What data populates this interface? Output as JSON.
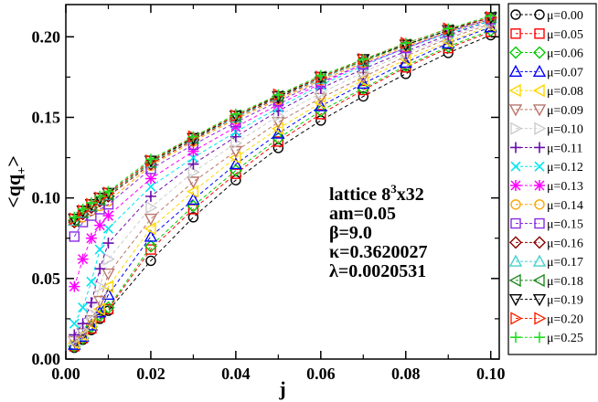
{
  "chart_data": {
    "type": "line",
    "title": "",
    "xlabel": "j",
    "ylabel": "<qq",
    "ylabel_subscript": "+",
    "xlim": [
      0.0,
      0.102
    ],
    "ylim": [
      0.0,
      0.22
    ],
    "xticks": [
      "0.00",
      "0.02",
      "0.04",
      "0.06",
      "0.08",
      "0.10"
    ],
    "yticks": [
      "0.00",
      "0.05",
      "0.10",
      "0.15",
      "0.20"
    ],
    "grid": false,
    "legend_position": "right",
    "x": [
      0.002,
      0.004,
      0.006,
      0.008,
      0.01,
      0.02,
      0.03,
      0.04,
      0.05,
      0.06,
      0.07,
      0.08,
      0.09,
      0.1
    ],
    "annotation_lines": [
      {
        "text": "lattice 8",
        "sup": "3",
        "tail": "x32"
      },
      {
        "text": "am=0.05"
      },
      {
        "text": "β=9.0"
      },
      {
        "text": "κ=0.3620027"
      },
      {
        "text": "λ=0.0020531"
      }
    ],
    "series": [
      {
        "name": "μ=0.00",
        "color": "#000000",
        "marker": "circle",
        "values": [
          0.007,
          0.012,
          0.018,
          0.025,
          0.03,
          0.061,
          0.088,
          0.111,
          0.131,
          0.148,
          0.163,
          0.177,
          0.19,
          0.201
        ]
      },
      {
        "name": "μ=0.05",
        "color": "#ff0000",
        "marker": "square",
        "values": [
          0.008,
          0.013,
          0.019,
          0.026,
          0.031,
          0.068,
          0.093,
          0.115,
          0.135,
          0.152,
          0.167,
          0.181,
          0.193,
          0.203
        ]
      },
      {
        "name": "μ=0.06",
        "color": "#00cc00",
        "marker": "diamond",
        "values": [
          0.008,
          0.013,
          0.02,
          0.027,
          0.032,
          0.07,
          0.095,
          0.117,
          0.137,
          0.154,
          0.168,
          0.182,
          0.194,
          0.204
        ]
      },
      {
        "name": "μ=0.07",
        "color": "#0000ff",
        "marker": "triangle-up",
        "values": [
          0.009,
          0.014,
          0.021,
          0.029,
          0.04,
          0.076,
          0.099,
          0.121,
          0.14,
          0.157,
          0.171,
          0.184,
          0.196,
          0.206
        ]
      },
      {
        "name": "μ=0.08",
        "color": "#ffd700",
        "marker": "triangle-left",
        "values": [
          0.01,
          0.015,
          0.022,
          0.031,
          0.045,
          0.081,
          0.104,
          0.125,
          0.143,
          0.159,
          0.173,
          0.186,
          0.197,
          0.207
        ]
      },
      {
        "name": "μ=0.09",
        "color": "#b8766a",
        "marker": "triangle-down",
        "values": [
          0.011,
          0.016,
          0.024,
          0.036,
          0.053,
          0.087,
          0.11,
          0.129,
          0.147,
          0.162,
          0.175,
          0.188,
          0.199,
          0.208
        ]
      },
      {
        "name": "μ=0.10",
        "color": "#cccccc",
        "marker": "triangle-right",
        "values": [
          0.012,
          0.018,
          0.028,
          0.045,
          0.062,
          0.094,
          0.116,
          0.134,
          0.151,
          0.165,
          0.178,
          0.19,
          0.2,
          0.209
        ]
      },
      {
        "name": "μ=0.11",
        "color": "#6a0dad",
        "marker": "plus",
        "values": [
          0.015,
          0.022,
          0.035,
          0.056,
          0.072,
          0.101,
          0.121,
          0.138,
          0.154,
          0.168,
          0.18,
          0.191,
          0.201,
          0.21
        ]
      },
      {
        "name": "μ=0.12",
        "color": "#00e5ee",
        "marker": "x",
        "values": [
          0.022,
          0.032,
          0.048,
          0.068,
          0.081,
          0.107,
          0.125,
          0.141,
          0.156,
          0.17,
          0.182,
          0.193,
          0.202,
          0.21
        ]
      },
      {
        "name": "μ=0.13",
        "color": "#ff00ff",
        "marker": "asterisk",
        "values": [
          0.045,
          0.062,
          0.075,
          0.083,
          0.089,
          0.112,
          0.129,
          0.144,
          0.158,
          0.171,
          0.183,
          0.193,
          0.203,
          0.211
        ]
      },
      {
        "name": "μ=0.14",
        "color": "#ffa500",
        "marker": "circle",
        "values": [
          0.085,
          0.088,
          0.092,
          0.095,
          0.098,
          0.12,
          0.135,
          0.149,
          0.161,
          0.173,
          0.184,
          0.194,
          0.203,
          0.211
        ]
      },
      {
        "name": "μ=0.15",
        "color": "#8a2be2",
        "marker": "square",
        "values": [
          0.076,
          0.085,
          0.089,
          0.093,
          0.096,
          0.118,
          0.133,
          0.147,
          0.16,
          0.172,
          0.183,
          0.193,
          0.203,
          0.211
        ]
      },
      {
        "name": "μ=0.16",
        "color": "#8b0000",
        "marker": "diamond",
        "values": [
          0.085,
          0.09,
          0.094,
          0.098,
          0.101,
          0.121,
          0.136,
          0.15,
          0.162,
          0.174,
          0.185,
          0.195,
          0.204,
          0.212
        ]
      },
      {
        "name": "μ=0.17",
        "color": "#48d1cc",
        "marker": "triangle-up",
        "values": [
          0.086,
          0.091,
          0.095,
          0.099,
          0.102,
          0.122,
          0.137,
          0.15,
          0.163,
          0.174,
          0.185,
          0.195,
          0.204,
          0.212
        ]
      },
      {
        "name": "μ=0.18",
        "color": "#228b22",
        "marker": "triangle-left",
        "values": [
          0.086,
          0.091,
          0.095,
          0.099,
          0.102,
          0.122,
          0.137,
          0.151,
          0.163,
          0.175,
          0.185,
          0.195,
          0.204,
          0.212
        ]
      },
      {
        "name": "μ=0.19",
        "color": "#000000",
        "marker": "triangle-down",
        "values": [
          0.087,
          0.092,
          0.096,
          0.1,
          0.103,
          0.123,
          0.137,
          0.151,
          0.163,
          0.175,
          0.186,
          0.195,
          0.204,
          0.212
        ]
      },
      {
        "name": "μ=0.20",
        "color": "#ff2200",
        "marker": "triangle-right",
        "values": [
          0.087,
          0.092,
          0.096,
          0.1,
          0.103,
          0.123,
          0.138,
          0.151,
          0.164,
          0.175,
          0.186,
          0.196,
          0.205,
          0.212
        ]
      },
      {
        "name": "μ=0.25",
        "color": "#22dd22",
        "marker": "plus",
        "values": [
          0.088,
          0.093,
          0.097,
          0.101,
          0.104,
          0.124,
          0.138,
          0.152,
          0.164,
          0.176,
          0.186,
          0.196,
          0.205,
          0.213
        ]
      }
    ]
  }
}
